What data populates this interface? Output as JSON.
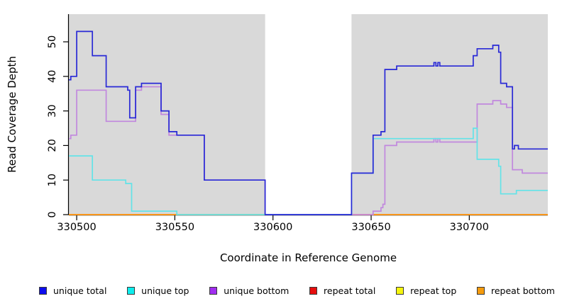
{
  "chart_data": {
    "type": "line",
    "subtype": "step-coverage-plot",
    "title": "",
    "xlabel": "Coordinate in Reference Genome",
    "ylabel": "Read Coverage Depth",
    "xlim": [
      330496,
      330740
    ],
    "ylim": [
      0,
      58
    ],
    "x_ticks": [
      330500,
      330550,
      330600,
      330650,
      330700
    ],
    "y_ticks": [
      0,
      10,
      20,
      30,
      40,
      50
    ],
    "grid": "off",
    "plot_bg_color": "#d9d9d9",
    "no_data_region": {
      "x_start": 330596,
      "x_end": 330640,
      "color": "#ffffff"
    },
    "legend_position": "bottom",
    "draw_order": [
      "repeat total",
      "repeat top",
      "repeat bottom",
      "unique bottom",
      "unique top",
      "unique total"
    ],
    "series": [
      {
        "name": "unique total",
        "line_color": "#2929d6",
        "legend_color": "#0d0dee",
        "points": [
          [
            330496,
            39
          ],
          [
            330497,
            40
          ],
          [
            330500,
            53
          ],
          [
            330508,
            46
          ],
          [
            330515,
            37
          ],
          [
            330526,
            36
          ],
          [
            330527,
            28
          ],
          [
            330530,
            37
          ],
          [
            330533,
            38
          ],
          [
            330543,
            30
          ],
          [
            330547,
            24
          ],
          [
            330551,
            23
          ],
          [
            330565,
            10
          ],
          [
            330596,
            0
          ],
          [
            330640,
            12
          ],
          [
            330651,
            23
          ],
          [
            330655,
            24
          ],
          [
            330657,
            42
          ],
          [
            330663,
            43
          ],
          [
            330682,
            44
          ],
          [
            330683,
            43
          ],
          [
            330684,
            44
          ],
          [
            330685,
            43
          ],
          [
            330702,
            46
          ],
          [
            330704,
            48
          ],
          [
            330712,
            49
          ],
          [
            330715,
            47
          ],
          [
            330716,
            38
          ],
          [
            330719,
            37
          ],
          [
            330722,
            19
          ],
          [
            330723,
            20
          ],
          [
            330725,
            19
          ]
        ]
      },
      {
        "name": "unique top",
        "line_color": "#63e3e8",
        "legend_color": "#0dedED",
        "points": [
          [
            330496,
            17
          ],
          [
            330508,
            10
          ],
          [
            330525,
            9
          ],
          [
            330528,
            1
          ],
          [
            330551,
            0
          ],
          [
            330640,
            12
          ],
          [
            330651,
            22
          ],
          [
            330702,
            25
          ],
          [
            330704,
            16
          ],
          [
            330715,
            14
          ],
          [
            330716,
            6
          ],
          [
            330724,
            7
          ]
        ]
      },
      {
        "name": "unique bottom",
        "line_color": "#c188de",
        "legend_color": "#a12df0",
        "points": [
          [
            330496,
            22
          ],
          [
            330497,
            23
          ],
          [
            330500,
            36
          ],
          [
            330515,
            27
          ],
          [
            330530,
            36
          ],
          [
            330533,
            37
          ],
          [
            330543,
            29
          ],
          [
            330547,
            23
          ],
          [
            330565,
            10
          ],
          [
            330596,
            0
          ],
          [
            330651,
            1
          ],
          [
            330655,
            2
          ],
          [
            330656,
            3
          ],
          [
            330657,
            20
          ],
          [
            330663,
            21
          ],
          [
            330682,
            22
          ],
          [
            330683,
            21
          ],
          [
            330684,
            22
          ],
          [
            330685,
            21
          ],
          [
            330704,
            32
          ],
          [
            330712,
            33
          ],
          [
            330716,
            32
          ],
          [
            330719,
            31
          ],
          [
            330722,
            13
          ],
          [
            330727,
            12
          ]
        ]
      },
      {
        "name": "repeat total",
        "line_color": "#dd2222",
        "legend_color": "#e60d0d",
        "points": [
          [
            330496,
            0
          ]
        ]
      },
      {
        "name": "repeat top",
        "line_color": "#ededD00",
        "legend_color": "#f5f50d",
        "points": [
          [
            330496,
            0
          ]
        ]
      },
      {
        "name": "repeat bottom",
        "line_color": "#ffa317",
        "legend_color": "#f59b0d",
        "points": [
          [
            330496,
            0
          ]
        ]
      }
    ]
  },
  "layout_labels": {
    "y_axis_title": "Read Coverage Depth",
    "x_axis_title": "Coordinate in Reference Genome"
  }
}
